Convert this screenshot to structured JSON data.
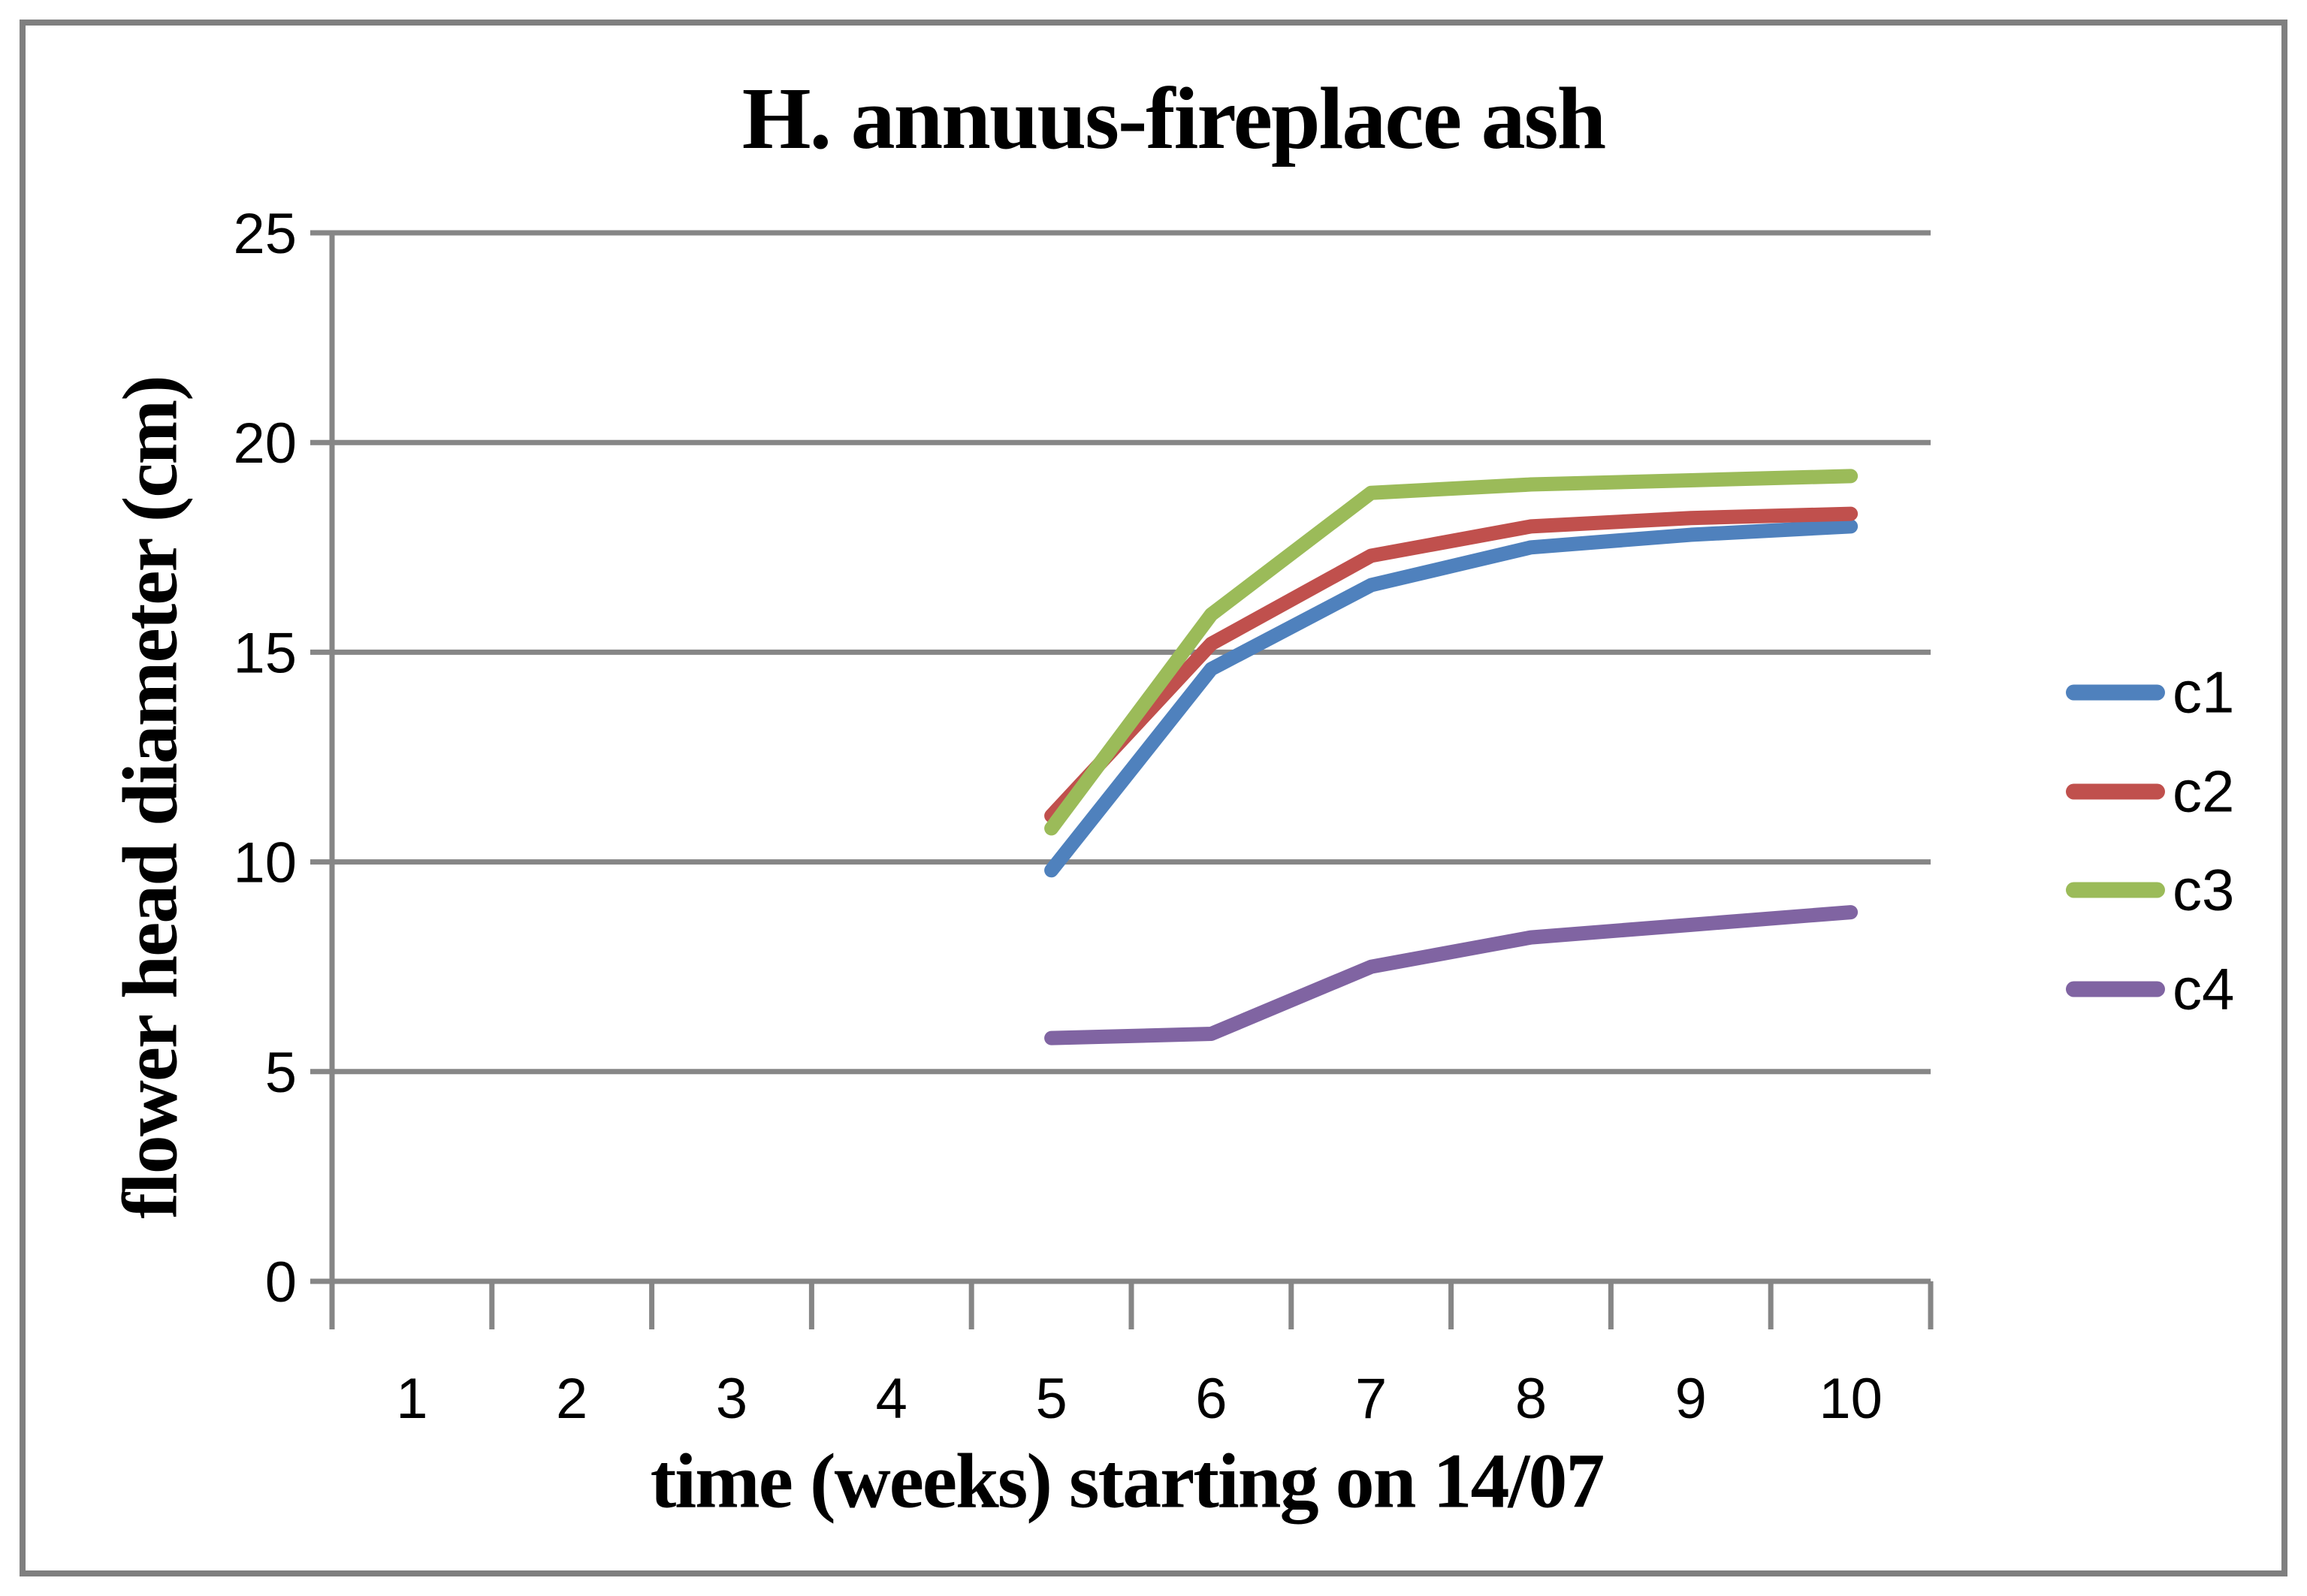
{
  "chart_data": {
    "type": "line",
    "title": "H. annuus-fireplace ash",
    "xlabel": "time (weeks) starting on 14/07",
    "ylabel": "flower head diameter (cm)",
    "x_categories": [
      "1",
      "2",
      "3",
      "4",
      "5",
      "6",
      "7",
      "8",
      "9",
      "10"
    ],
    "y_ticks": [
      25,
      20,
      15,
      10,
      5,
      0
    ],
    "ylim": [
      0,
      25
    ],
    "xlim_weeks": [
      1,
      10
    ],
    "grid": "horizontal-major",
    "legend_position": "right",
    "note_data_starts_at_week": 5,
    "series": [
      {
        "name": "c1",
        "color": "#4F81BD",
        "x": [
          5,
          6,
          7,
          8,
          9,
          10
        ],
        "values": [
          9.8,
          14.6,
          16.6,
          17.5,
          17.8,
          18.0
        ]
      },
      {
        "name": "c2",
        "color": "#C0504D",
        "x": [
          5,
          6,
          7,
          8,
          9,
          10
        ],
        "values": [
          11.1,
          15.2,
          17.3,
          18.0,
          18.2,
          18.3
        ]
      },
      {
        "name": "c3",
        "color": "#9BBB59",
        "x": [
          5,
          6,
          7,
          8,
          9,
          10
        ],
        "values": [
          10.8,
          15.9,
          18.8,
          19.0,
          19.1,
          19.2
        ]
      },
      {
        "name": "c4",
        "color": "#8064A2",
        "x": [
          5,
          6,
          7,
          8,
          9,
          10
        ],
        "values": [
          5.8,
          5.9,
          7.5,
          8.2,
          8.5,
          8.8
        ]
      }
    ],
    "colors": {
      "gridline": "#868686",
      "axis": "#868686",
      "frame_border": "#7F7F7F",
      "background": "#FFFFFF",
      "text": "#000000"
    }
  }
}
